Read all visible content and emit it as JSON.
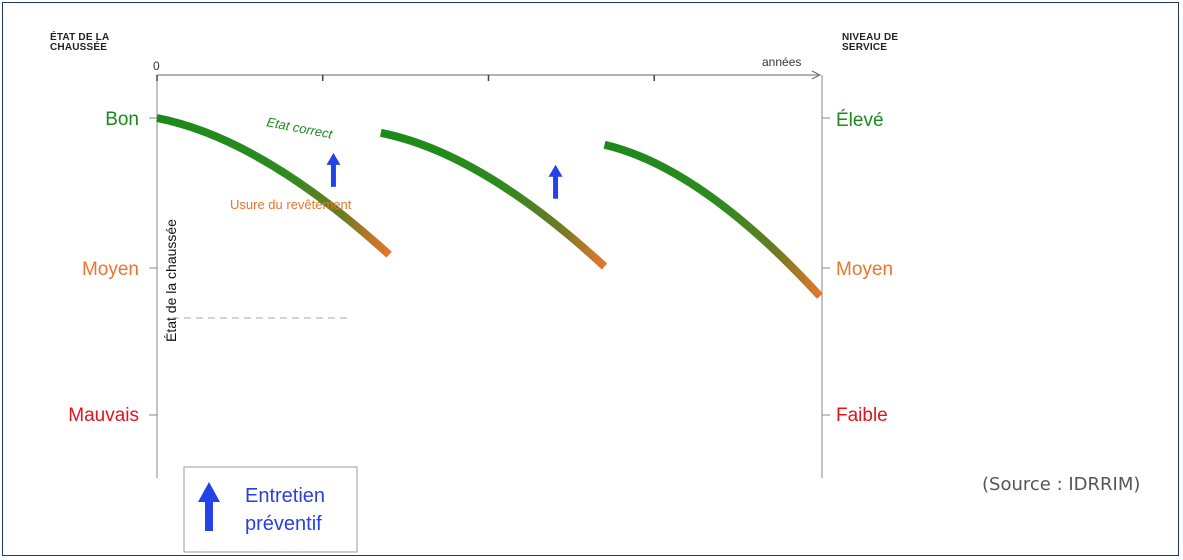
{
  "headers": {
    "left_line1": "ÉTAT DE LA",
    "left_line2": "CHAUSSÉE",
    "right_line1": "NIVEAU DE",
    "right_line2": "SERVICE"
  },
  "source": "(Source : IDRRIM)",
  "legend": {
    "line1": "Entretien",
    "line2": "préventif",
    "icon": "up-arrow-icon"
  },
  "colors": {
    "good": "#1a8a1a",
    "medium": "#e8762c",
    "bad": "#e3131b",
    "arrow": "#2342e8",
    "axis": "#888888"
  },
  "chart_data": {
    "type": "line",
    "x_axis": {
      "label": "années",
      "origin_label": "0",
      "tick_count": 4
    },
    "y_left": {
      "levels": [
        "Bon",
        "Moyen",
        "Mauvais"
      ],
      "vertical_label": "État de la chaussée"
    },
    "y_right": {
      "levels": [
        "Élevé",
        "Moyen",
        "Faible"
      ]
    },
    "level_colors": [
      "#1a8a1a",
      "#e8762c",
      "#e3131b"
    ],
    "annotations": [
      "Etat correct",
      "Usure du revêtement"
    ],
    "series": [
      {
        "segments": [
          {
            "x_start": 0.0,
            "y_start": 1.0,
            "x_end": 1.4,
            "y_end": 0.54
          },
          {
            "x_start": 1.35,
            "y_start": 0.95,
            "x_end": 2.7,
            "y_end": 0.5
          },
          {
            "x_start": 2.7,
            "y_start": 0.91,
            "x_end": 4.0,
            "y_end": 0.4
          }
        ]
      }
    ],
    "interventions_x": [
      1.33,
      2.67
    ],
    "grid": false
  }
}
